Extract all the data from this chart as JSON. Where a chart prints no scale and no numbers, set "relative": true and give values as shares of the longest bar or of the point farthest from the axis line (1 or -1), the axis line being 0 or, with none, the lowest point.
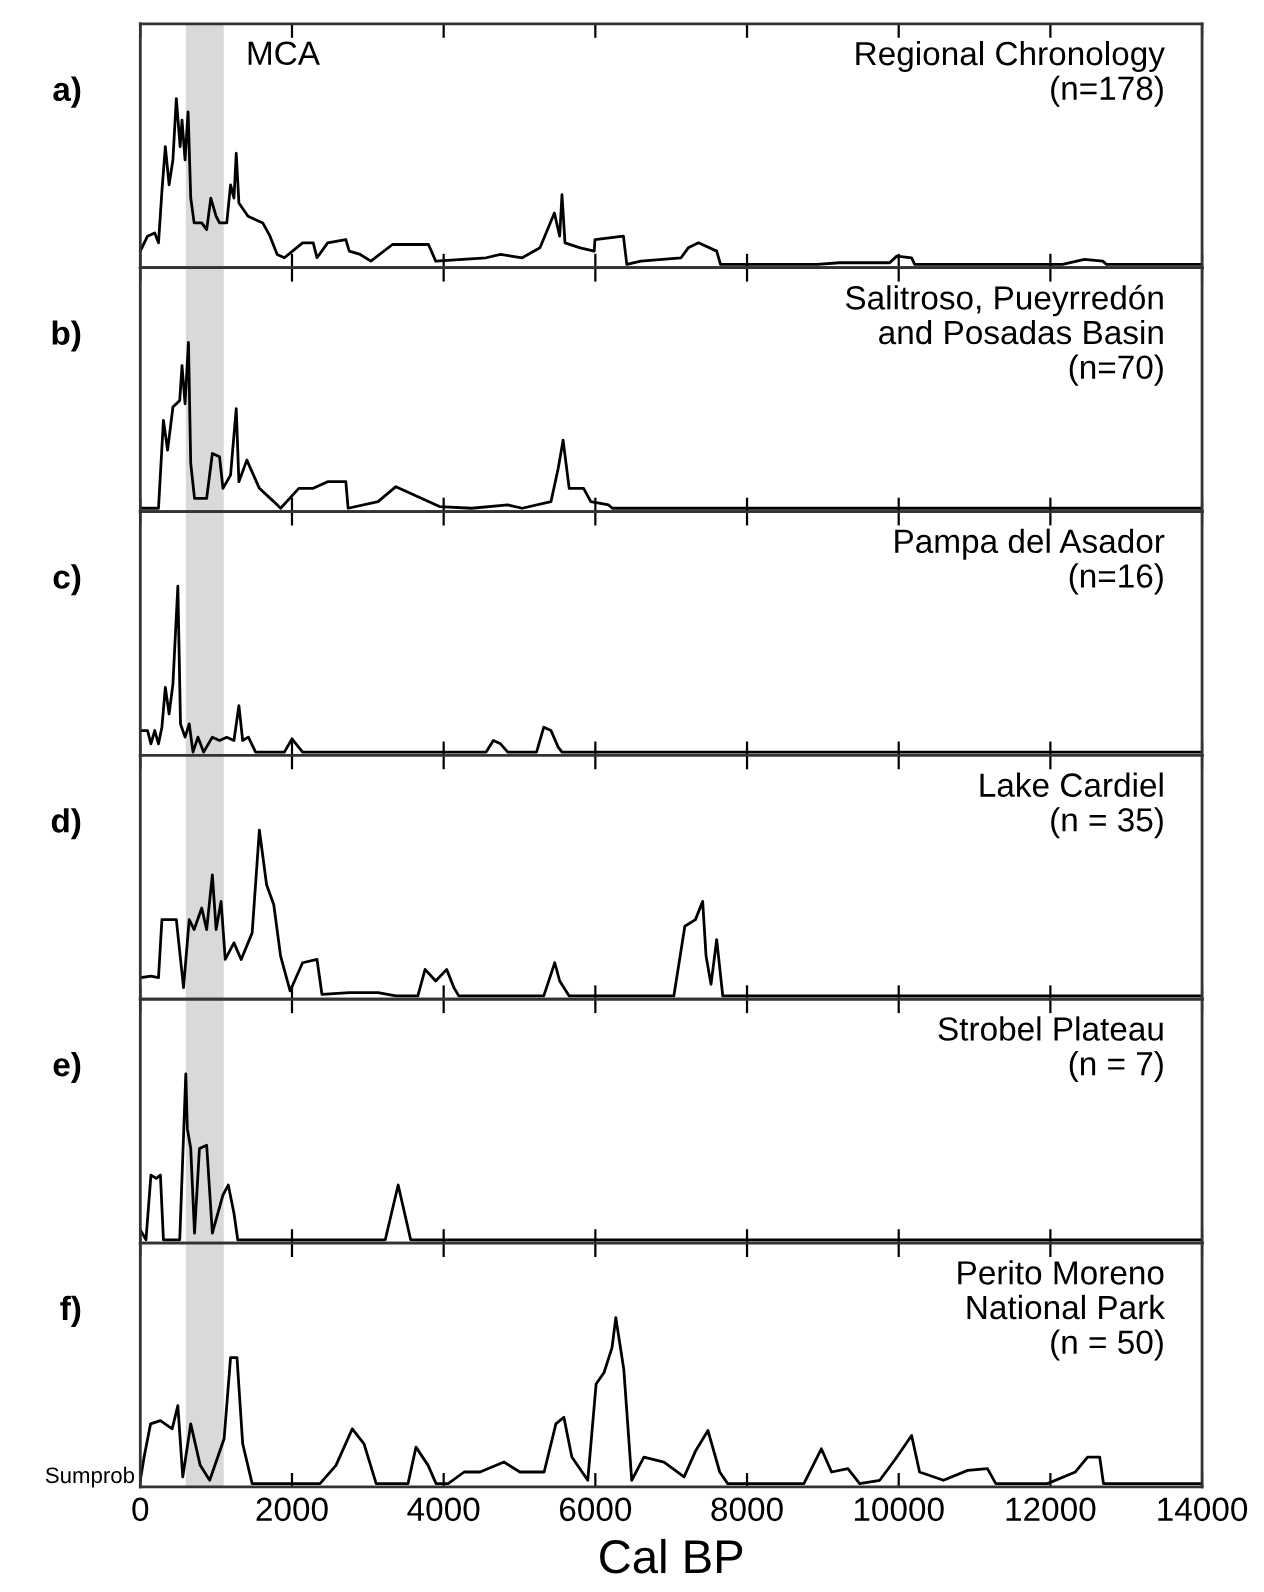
{
  "chart_data": [
    {
      "type": "line",
      "title": "Regional Chronology\n(n=178)",
      "annotations": [
        "a)"
      ],
      "relative": true,
      "color": "#000000",
      "xlim": [
        0,
        14000
      ],
      "xticks": [
        0,
        2000,
        4000,
        6000,
        8000,
        10000,
        12000,
        14000
      ],
      "tick_labels": false,
      "bands": [
        {
          "axis": "x",
          "from": 600,
          "to": 1100,
          "label": "MCA",
          "color": "#d9d9d9"
        }
      ],
      "x": [
        0,
        95,
        190,
        240,
        285,
        330,
        380,
        430,
        475,
        525,
        550,
        590,
        630,
        665,
        710,
        810,
        875,
        930,
        1000,
        1045,
        1140,
        1190,
        1235,
        1265,
        1300,
        1420,
        1615,
        1710,
        1805,
        1900,
        2140,
        2280,
        2330,
        2470,
        2710,
        2755,
        2900,
        3040,
        3325,
        3800,
        3895,
        4560,
        4750,
        5035,
        5270,
        5460,
        5530,
        5560,
        5600,
        5800,
        5985,
        5995,
        6370,
        6415,
        6600,
        7130,
        7225,
        7360,
        7600,
        7650,
        8930,
        9220,
        9880,
        9975,
        10170,
        10210,
        11120,
        12160,
        12450,
        12690,
        12740,
        14000
      ],
      "values": [
        0.08,
        0.17,
        0.19,
        0.13,
        0.44,
        0.71,
        0.48,
        0.63,
        1.0,
        0.71,
        0.87,
        0.63,
        0.92,
        0.4,
        0.25,
        0.25,
        0.21,
        0.4,
        0.29,
        0.25,
        0.25,
        0.48,
        0.4,
        0.67,
        0.37,
        0.29,
        0.25,
        0.17,
        0.06,
        0.04,
        0.13,
        0.13,
        0.04,
        0.13,
        0.15,
        0.08,
        0.06,
        0.02,
        0.12,
        0.12,
        0.02,
        0.04,
        0.06,
        0.04,
        0.1,
        0.31,
        0.17,
        0.42,
        0.13,
        0.1,
        0.08,
        0.15,
        0.17,
        0,
        0.02,
        0.04,
        0.1,
        0.13,
        0.08,
        0,
        0,
        0.01,
        0.01,
        0.05,
        0.04,
        0,
        0,
        0,
        0.03,
        0.02,
        0,
        0
      ]
    },
    {
      "type": "line",
      "title": "Salitroso, Pueyrredón\nand Posadas Basin\n(n=70)",
      "annotations": [
        "b)"
      ],
      "relative": true,
      "color": "#000000",
      "xlim": [
        0,
        14000
      ],
      "xticks": [
        0,
        2000,
        4000,
        6000,
        8000,
        10000,
        12000,
        14000
      ],
      "tick_labels": false,
      "bands": [
        {
          "axis": "x",
          "from": 600,
          "to": 1100,
          "color": "#d9d9d9"
        }
      ],
      "x": [
        0,
        240,
        305,
        360,
        430,
        520,
        550,
        590,
        635,
        665,
        715,
        875,
        950,
        1045,
        1090,
        1190,
        1265,
        1300,
        1405,
        1570,
        1760,
        1850,
        2090,
        2280,
        2470,
        2710,
        2740,
        3135,
        3370,
        3800,
        3945,
        4370,
        4845,
        5035,
        5415,
        5510,
        5575,
        5655,
        5845,
        5940,
        6175,
        6225,
        14000
      ],
      "values": [
        0,
        0,
        0.53,
        0.35,
        0.61,
        0.65,
        0.86,
        0.63,
        1.0,
        0.27,
        0.06,
        0.06,
        0.33,
        0.31,
        0.12,
        0.2,
        0.6,
        0.16,
        0.29,
        0.12,
        0.04,
        0,
        0.12,
        0.12,
        0.16,
        0.16,
        0,
        0.04,
        0.13,
        0.04,
        0.01,
        0,
        0.02,
        0,
        0.04,
        0.24,
        0.41,
        0.12,
        0.12,
        0.04,
        0.02,
        0,
        0
      ]
    },
    {
      "type": "line",
      "title": "Pampa del Asador\n(n=16)",
      "annotations": [
        "c)"
      ],
      "relative": true,
      "color": "#000000",
      "xlim": [
        0,
        14000
      ],
      "xticks": [
        0,
        2000,
        4000,
        6000,
        8000,
        10000,
        12000,
        14000
      ],
      "tick_labels": false,
      "bands": [
        {
          "axis": "x",
          "from": 600,
          "to": 1100,
          "color": "#d9d9d9"
        }
      ],
      "x": [
        0,
        95,
        140,
        190,
        240,
        285,
        330,
        380,
        430,
        495,
        530,
        590,
        645,
        695,
        760,
        835,
        950,
        1045,
        1140,
        1235,
        1300,
        1350,
        1425,
        1520,
        1900,
        2000,
        2140,
        4560,
        4655,
        4750,
        4845,
        5225,
        5320,
        5415,
        5510,
        5560,
        14000
      ],
      "values": [
        0.13,
        0.13,
        0.05,
        0.13,
        0.05,
        0.15,
        0.39,
        0.23,
        0.41,
        1.0,
        0.17,
        0.09,
        0.17,
        0,
        0.09,
        0,
        0.09,
        0.07,
        0.09,
        0.07,
        0.28,
        0.07,
        0.09,
        0,
        0,
        0.08,
        0,
        0,
        0.07,
        0.05,
        0,
        0,
        0.15,
        0.13,
        0.03,
        0,
        0
      ]
    },
    {
      "type": "line",
      "title": "Lake Cardiel\n(n = 35)",
      "annotations": [
        "d)"
      ],
      "relative": true,
      "color": "#000000",
      "xlim": [
        0,
        14000
      ],
      "xticks": [
        0,
        2000,
        4000,
        6000,
        8000,
        10000,
        12000,
        14000
      ],
      "tick_labels": false,
      "bands": [
        {
          "axis": "x",
          "from": 600,
          "to": 1100,
          "color": "#d9d9d9"
        }
      ],
      "x": [
        0,
        140,
        240,
        285,
        475,
        570,
        645,
        710,
        810,
        875,
        950,
        1000,
        1065,
        1120,
        1235,
        1330,
        1475,
        1570,
        1665,
        1760,
        1850,
        1975,
        2140,
        2330,
        2395,
        2755,
        3135,
        3370,
        3660,
        3755,
        3895,
        4040,
        4135,
        4200,
        5320,
        5465,
        5530,
        5655,
        7035,
        7180,
        7320,
        7415,
        7460,
        7525,
        7600,
        7680,
        14000
      ],
      "values": [
        0.11,
        0.12,
        0.11,
        0.46,
        0.46,
        0.05,
        0.46,
        0.4,
        0.53,
        0.4,
        0.73,
        0.4,
        0.57,
        0.22,
        0.32,
        0.22,
        0.38,
        1.0,
        0.67,
        0.55,
        0.24,
        0.03,
        0.2,
        0.22,
        0.01,
        0.02,
        0.02,
        0,
        0,
        0.16,
        0.09,
        0.16,
        0.05,
        0,
        0,
        0.2,
        0.09,
        0,
        0,
        0.42,
        0.46,
        0.57,
        0.24,
        0.07,
        0.34,
        0,
        0
      ]
    },
    {
      "type": "line",
      "title": "Strobel Plateau\n(n = 7)",
      "annotations": [
        "e)"
      ],
      "relative": true,
      "color": "#000000",
      "xlim": [
        0,
        14000
      ],
      "xticks": [
        0,
        2000,
        4000,
        6000,
        8000,
        10000,
        12000,
        14000
      ],
      "tick_labels": false,
      "bands": [
        {
          "axis": "x",
          "from": 600,
          "to": 1100,
          "color": "#d9d9d9"
        }
      ],
      "x": [
        0,
        75,
        140,
        210,
        265,
        305,
        520,
        600,
        620,
        665,
        715,
        780,
        875,
        950,
        1090,
        1160,
        1235,
        1285,
        3230,
        3400,
        3565,
        14000
      ],
      "values": [
        0.06,
        0,
        0.39,
        0.37,
        0.39,
        0,
        0,
        1.0,
        0.67,
        0.55,
        0.04,
        0.55,
        0.57,
        0.04,
        0.27,
        0.33,
        0.16,
        0,
        0,
        0.33,
        0,
        0
      ]
    },
    {
      "type": "line",
      "title": "Perito Moreno\nNational Park\n(n = 50)",
      "annotations": [
        "f)"
      ],
      "ylabel": "Sumprob",
      "xlabel": "Cal BP",
      "relative": true,
      "color": "#000000",
      "xlim": [
        0,
        14000
      ],
      "xticks": [
        0,
        2000,
        4000,
        6000,
        8000,
        10000,
        12000,
        14000
      ],
      "tick_labels": "x",
      "bands": [
        {
          "axis": "x",
          "from": 600,
          "to": 1100,
          "color": "#d9d9d9"
        }
      ],
      "x": [
        0,
        50,
        135,
        265,
        420,
        495,
        560,
        665,
        790,
        915,
        1105,
        1190,
        1275,
        1350,
        1475,
        2370,
        2580,
        2795,
        2950,
        3110,
        3530,
        3635,
        3795,
        3900,
        4060,
        4270,
        4480,
        4795,
        5005,
        5325,
        5480,
        5585,
        5690,
        5900,
        6010,
        6115,
        6220,
        6270,
        6375,
        6480,
        6640,
        6905,
        7170,
        7325,
        7485,
        7640,
        7745,
        8750,
        8980,
        9115,
        9330,
        9485,
        9750,
        9960,
        10170,
        10275,
        10590,
        10910,
        11170,
        11280,
        11960,
        12330,
        12490,
        12650,
        12700,
        14000
      ],
      "values": [
        0.02,
        0.16,
        0.36,
        0.38,
        0.33,
        0.47,
        0.04,
        0.36,
        0.11,
        0.02,
        0.27,
        0.76,
        0.76,
        0.24,
        0,
        0,
        0.11,
        0.33,
        0.24,
        0,
        0,
        0.22,
        0.11,
        0,
        0,
        0.07,
        0.07,
        0.13,
        0.07,
        0.07,
        0.36,
        0.4,
        0.16,
        0.02,
        0.6,
        0.67,
        0.82,
        1.0,
        0.69,
        0.02,
        0.16,
        0.13,
        0.04,
        0.2,
        0.32,
        0.07,
        0,
        0,
        0.21,
        0.07,
        0.09,
        0,
        0.02,
        0.15,
        0.29,
        0.07,
        0.02,
        0.08,
        0.09,
        0,
        0,
        0.07,
        0.16,
        0.16,
        0,
        0
      ]
    }
  ]
}
